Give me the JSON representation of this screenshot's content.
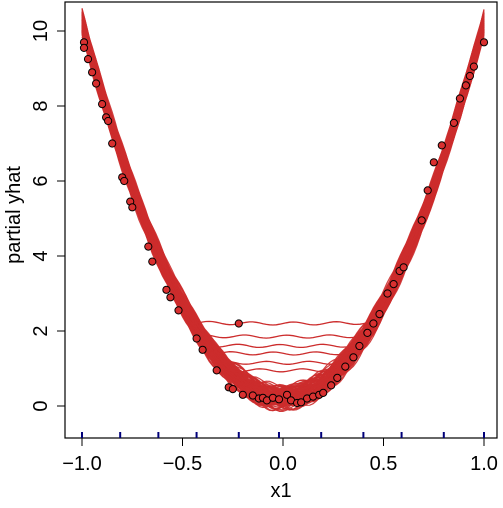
{
  "chart_data": {
    "type": "line",
    "title": "",
    "xlabel": "x1",
    "ylabel": "partial yhat",
    "xlim": [
      -1.0,
      1.0
    ],
    "ylim": [
      0,
      10
    ],
    "x_ticks": [
      -1.0,
      -0.5,
      0.0,
      0.5,
      1.0
    ],
    "x_tick_labels": [
      "−1.0",
      "−0.5",
      "0.0",
      "0.5",
      "1.0"
    ],
    "y_ticks": [
      0,
      2,
      4,
      6,
      8,
      10
    ],
    "y_tick_labels": [
      "0",
      "2",
      "4",
      "6",
      "8",
      "10"
    ],
    "rug_x": [
      -1.0,
      -0.81,
      -0.62,
      -0.43,
      -0.22,
      -0.02,
      0.19,
      0.4,
      0.59,
      0.8,
      1.0
    ],
    "line_color": "#cc2c2c",
    "point_fill": "#d93030",
    "point_edge": "#000000",
    "rug_color": "#00007a",
    "n_curves": 100,
    "upper_curves": [
      {
        "min_x": -0.21,
        "min_y": 2.2
      },
      {
        "min_x": -0.21,
        "min_y": 1.85
      },
      {
        "min_x": -0.21,
        "min_y": 1.6
      },
      {
        "min_x": -0.21,
        "min_y": 1.4
      },
      {
        "min_x": -0.21,
        "min_y": 1.15
      },
      {
        "min_x": -0.21,
        "min_y": 0.95
      }
    ],
    "points": [
      {
        "x": -0.99,
        "y": 9.7
      },
      {
        "x": -0.99,
        "y": 9.55
      },
      {
        "x": -0.97,
        "y": 9.25
      },
      {
        "x": -0.95,
        "y": 8.9
      },
      {
        "x": -0.93,
        "y": 8.6
      },
      {
        "x": -0.9,
        "y": 8.05
      },
      {
        "x": -0.88,
        "y": 7.7
      },
      {
        "x": -0.87,
        "y": 7.6
      },
      {
        "x": -0.85,
        "y": 7.0
      },
      {
        "x": -0.8,
        "y": 6.1
      },
      {
        "x": -0.79,
        "y": 6.0
      },
      {
        "x": -0.76,
        "y": 5.45
      },
      {
        "x": -0.75,
        "y": 5.3
      },
      {
        "x": -0.67,
        "y": 4.25
      },
      {
        "x": -0.65,
        "y": 3.85
      },
      {
        "x": -0.58,
        "y": 3.1
      },
      {
        "x": -0.56,
        "y": 2.9
      },
      {
        "x": -0.52,
        "y": 2.55
      },
      {
        "x": -0.43,
        "y": 1.8
      },
      {
        "x": -0.4,
        "y": 1.5
      },
      {
        "x": -0.33,
        "y": 0.95
      },
      {
        "x": -0.27,
        "y": 0.5
      },
      {
        "x": -0.25,
        "y": 0.45
      },
      {
        "x": -0.22,
        "y": 2.2
      },
      {
        "x": -0.2,
        "y": 0.3
      },
      {
        "x": -0.15,
        "y": 0.28
      },
      {
        "x": -0.12,
        "y": 0.2
      },
      {
        "x": -0.1,
        "y": 0.22
      },
      {
        "x": -0.08,
        "y": 0.15
      },
      {
        "x": -0.05,
        "y": 0.22
      },
      {
        "x": -0.02,
        "y": 0.18
      },
      {
        "x": 0.02,
        "y": 0.3
      },
      {
        "x": 0.04,
        "y": 0.15
      },
      {
        "x": 0.07,
        "y": 0.08
      },
      {
        "x": 0.09,
        "y": 0.1
      },
      {
        "x": 0.12,
        "y": 0.2
      },
      {
        "x": 0.15,
        "y": 0.25
      },
      {
        "x": 0.18,
        "y": 0.3
      },
      {
        "x": 0.2,
        "y": 0.35
      },
      {
        "x": 0.24,
        "y": 0.55
      },
      {
        "x": 0.27,
        "y": 0.75
      },
      {
        "x": 0.31,
        "y": 1.05
      },
      {
        "x": 0.35,
        "y": 1.3
      },
      {
        "x": 0.38,
        "y": 1.6
      },
      {
        "x": 0.42,
        "y": 1.95
      },
      {
        "x": 0.45,
        "y": 2.2
      },
      {
        "x": 0.48,
        "y": 2.45
      },
      {
        "x": 0.52,
        "y": 3.0
      },
      {
        "x": 0.55,
        "y": 3.25
      },
      {
        "x": 0.58,
        "y": 3.6
      },
      {
        "x": 0.6,
        "y": 3.7
      },
      {
        "x": 0.69,
        "y": 4.95
      },
      {
        "x": 0.72,
        "y": 5.75
      },
      {
        "x": 0.75,
        "y": 6.5
      },
      {
        "x": 0.79,
        "y": 6.95
      },
      {
        "x": 0.85,
        "y": 7.55
      },
      {
        "x": 0.88,
        "y": 8.2
      },
      {
        "x": 0.91,
        "y": 8.55
      },
      {
        "x": 0.93,
        "y": 8.8
      },
      {
        "x": 0.95,
        "y": 9.05
      },
      {
        "x": 1.0,
        "y": 9.7
      }
    ]
  }
}
